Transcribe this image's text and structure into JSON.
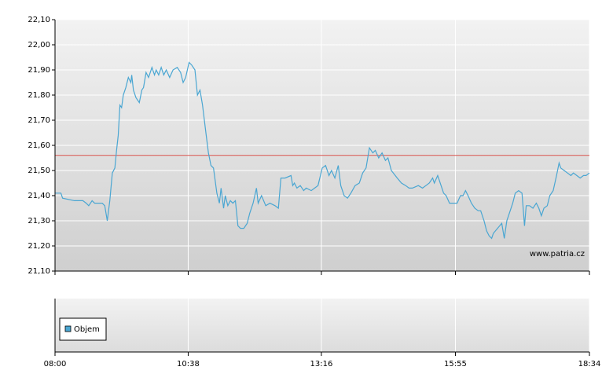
{
  "chart_data": {
    "type": "line",
    "x": [
      "08:00",
      "08:07",
      "08:09",
      "08:23",
      "08:33",
      "08:37",
      "08:40",
      "08:44",
      "08:47",
      "08:56",
      "08:59",
      "09:02",
      "09:05",
      "09:08",
      "09:11",
      "09:13",
      "09:15",
      "09:17",
      "09:19",
      "09:21",
      "09:24",
      "09:27",
      "09:30",
      "09:31",
      "09:33",
      "09:36",
      "09:40",
      "09:43",
      "09:45",
      "09:48",
      "09:51",
      "09:55",
      "09:58",
      "10:00",
      "10:03",
      "10:06",
      "10:09",
      "10:12",
      "10:16",
      "10:20",
      "10:25",
      "10:29",
      "10:32",
      "10:35",
      "10:39",
      "10:42",
      "10:46",
      "10:49",
      "10:52",
      "10:55",
      "10:59",
      "11:02",
      "11:05",
      "11:08",
      "11:12",
      "11:15",
      "11:17",
      "11:20",
      "11:22",
      "11:25",
      "11:28",
      "11:31",
      "11:34",
      "11:37",
      "11:40",
      "11:44",
      "11:48",
      "11:51",
      "11:55",
      "11:59",
      "12:01",
      "12:05",
      "12:10",
      "12:15",
      "12:21",
      "12:25",
      "12:28",
      "12:33",
      "12:40",
      "12:42",
      "12:44",
      "12:47",
      "12:51",
      "12:55",
      "12:58",
      "13:04",
      "13:08",
      "13:12",
      "13:17",
      "13:21",
      "13:25",
      "13:28",
      "13:32",
      "13:36",
      "13:39",
      "13:43",
      "13:47",
      "13:51",
      "13:56",
      "14:01",
      "14:05",
      "14:09",
      "14:13",
      "14:17",
      "14:20",
      "14:24",
      "14:28",
      "14:32",
      "14:35",
      "14:39",
      "14:46",
      "14:51",
      "14:56",
      "15:00",
      "15:04",
      "15:11",
      "15:16",
      "15:20",
      "15:24",
      "15:28",
      "15:30",
      "15:34",
      "15:38",
      "15:41",
      "15:44",
      "15:48",
      "15:52",
      "15:57",
      "16:01",
      "16:04",
      "16:07",
      "16:10",
      "16:14",
      "16:18",
      "16:22",
      "16:25",
      "16:29",
      "16:32",
      "16:35",
      "16:38",
      "16:40",
      "16:45",
      "16:50",
      "16:53",
      "16:56",
      "16:59",
      "17:03",
      "17:06",
      "17:10",
      "17:14",
      "17:17",
      "17:19",
      "17:23",
      "17:27",
      "17:31",
      "17:34",
      "17:37",
      "17:40",
      "17:44",
      "17:47",
      "17:51",
      "17:55",
      "17:58",
      "18:00",
      "18:04",
      "18:08",
      "18:12",
      "18:15",
      "18:19",
      "18:23",
      "18:27",
      "18:30",
      "18:34"
    ],
    "series": [
      {
        "color": "#4aa6d2",
        "values": [
          21.41,
          21.41,
          21.39,
          21.38,
          21.38,
          21.37,
          21.36,
          21.38,
          21.37,
          21.37,
          21.36,
          21.3,
          21.38,
          21.49,
          21.51,
          21.58,
          21.64,
          21.76,
          21.75,
          21.8,
          21.83,
          21.87,
          21.85,
          21.88,
          21.82,
          21.79,
          21.77,
          21.82,
          21.83,
          21.89,
          21.87,
          21.91,
          21.88,
          21.9,
          21.88,
          21.91,
          21.88,
          21.9,
          21.87,
          21.9,
          21.91,
          21.89,
          21.85,
          21.87,
          21.93,
          21.92,
          21.9,
          21.8,
          21.82,
          21.76,
          21.65,
          21.57,
          21.52,
          21.51,
          21.41,
          21.37,
          21.43,
          21.35,
          21.4,
          21.36,
          21.38,
          21.37,
          21.38,
          21.28,
          21.27,
          21.27,
          21.29,
          21.33,
          21.37,
          21.43,
          21.37,
          21.4,
          21.36,
          21.37,
          21.36,
          21.35,
          21.47,
          21.47,
          21.48,
          21.44,
          21.45,
          21.43,
          21.44,
          21.42,
          21.43,
          21.42,
          21.43,
          21.44,
          21.51,
          21.52,
          21.48,
          21.5,
          21.47,
          21.52,
          21.44,
          21.4,
          21.39,
          21.41,
          21.44,
          21.45,
          21.49,
          21.51,
          21.59,
          21.57,
          21.58,
          21.55,
          21.57,
          21.54,
          21.55,
          21.5,
          21.47,
          21.45,
          21.44,
          21.43,
          21.43,
          21.44,
          21.43,
          21.44,
          21.45,
          21.47,
          21.45,
          21.48,
          21.44,
          21.41,
          21.4,
          21.37,
          21.37,
          21.37,
          21.4,
          21.4,
          21.42,
          21.4,
          21.37,
          21.35,
          21.34,
          21.34,
          21.3,
          21.26,
          21.24,
          21.23,
          21.25,
          21.27,
          21.29,
          21.23,
          21.3,
          21.33,
          21.37,
          21.41,
          21.42,
          21.41,
          21.28,
          21.36,
          21.36,
          21.35,
          21.37,
          21.35,
          21.32,
          21.35,
          21.36,
          21.4,
          21.42,
          21.48,
          21.53,
          21.51,
          21.5,
          21.49,
          21.48,
          21.49,
          21.48,
          21.47,
          21.48,
          21.48,
          21.49
        ]
      }
    ],
    "reference_line": {
      "value": 21.56,
      "color": "#d9534f"
    },
    "xlim": [
      "08:00",
      "18:34"
    ],
    "xticks": [
      "08:00",
      "10:38",
      "13:16",
      "15:55",
      "18:34"
    ],
    "ylim": [
      21.1,
      22.1
    ],
    "yticks": [
      {
        "value": 21.1,
        "label": "21,10"
      },
      {
        "value": 21.2,
        "label": "21,20"
      },
      {
        "value": 21.3,
        "label": "21,30"
      },
      {
        "value": 21.4,
        "label": "21,40"
      },
      {
        "value": 21.5,
        "label": "21,50"
      },
      {
        "value": 21.6,
        "label": "21,60"
      },
      {
        "value": 21.7,
        "label": "21,70"
      },
      {
        "value": 21.8,
        "label": "21,80"
      },
      {
        "value": 21.9,
        "label": "21,90"
      },
      {
        "value": 22.0,
        "label": "22,00"
      },
      {
        "value": 22.1,
        "label": "22,10"
      }
    ],
    "grid": true,
    "watermark": "www.patria.cz",
    "volume_legend": "Objem"
  }
}
